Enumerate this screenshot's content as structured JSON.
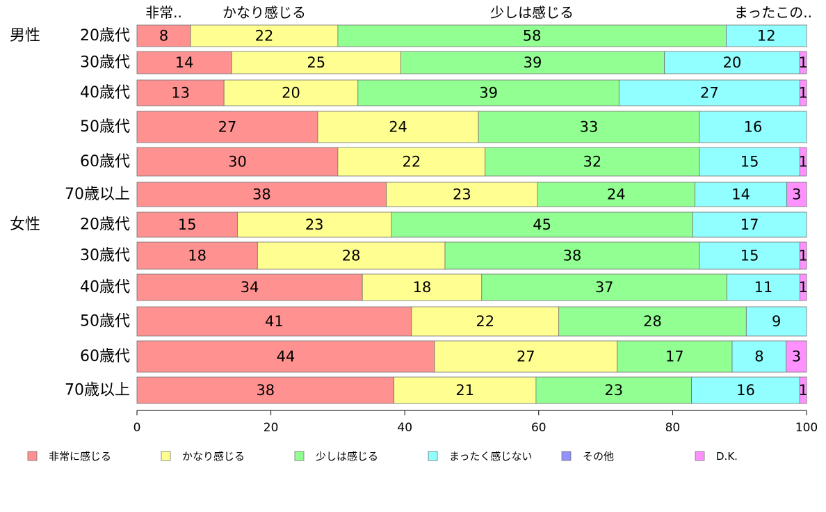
{
  "colors": [
    "#ff9191",
    "#ffff91",
    "#91ff91",
    "#91ffff",
    "#9191ff",
    "#ff91ff"
  ],
  "top_labels": [
    "非常..",
    "かなり感じる",
    "少しは感じる",
    "まったこの.."
  ],
  "group_labels": [
    "男性",
    "女性"
  ],
  "chart_data": {
    "type": "bar",
    "orientation": "horizontal",
    "stacked": true,
    "categories": [
      "20歳代",
      "30歳代",
      "40歳代",
      "50歳代",
      "60歳代",
      "70歳以上",
      "20歳代",
      "30歳代",
      "40歳代",
      "50歳代",
      "60歳代",
      "70歳以上"
    ],
    "groups": [
      {
        "label": "男性",
        "start": 0,
        "count": 6
      },
      {
        "label": "女性",
        "start": 6,
        "count": 6
      }
    ],
    "series": [
      {
        "name": "非常に感じる",
        "values": [
          8,
          14,
          13,
          27,
          30,
          38,
          15,
          18,
          34,
          41,
          44,
          38
        ]
      },
      {
        "name": "かなり感じる",
        "values": [
          22,
          25,
          20,
          24,
          22,
          23,
          23,
          28,
          18,
          22,
          27,
          21
        ]
      },
      {
        "name": "少しは感じる",
        "values": [
          58,
          39,
          39,
          33,
          32,
          24,
          45,
          38,
          37,
          28,
          17,
          23
        ]
      },
      {
        "name": "まったく感じない",
        "values": [
          12,
          20,
          27,
          16,
          15,
          14,
          17,
          15,
          11,
          9,
          8,
          16
        ]
      },
      {
        "name": "その他",
        "values": [
          0,
          0,
          0,
          0,
          0,
          0,
          0,
          0,
          0,
          0,
          0,
          0
        ]
      },
      {
        "name": "D.K.",
        "values": [
          0,
          1,
          1,
          0,
          1,
          3,
          0,
          1,
          1,
          0,
          3,
          1
        ]
      }
    ],
    "xlim": [
      0,
      100
    ],
    "xticks": [
      0,
      20,
      40,
      60,
      80,
      100
    ],
    "legend_position": "bottom",
    "grid": false
  }
}
